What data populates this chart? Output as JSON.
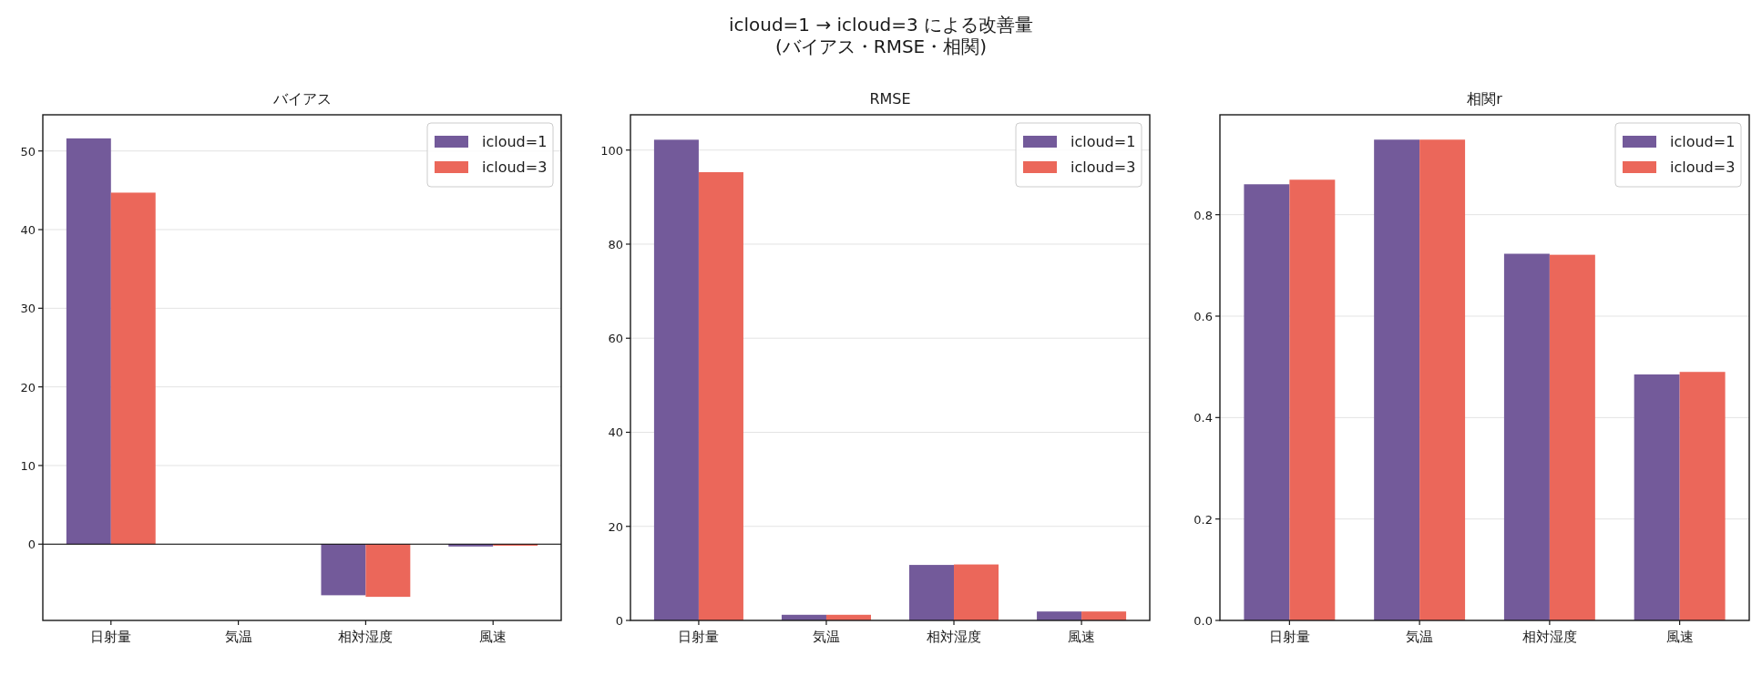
{
  "chart_data": [
    {
      "type": "bar",
      "title": "バイアス",
      "annotations": [
        "icloud=1 → icloud=3 による改善量\n(バイアス・RMSE・相関)"
      ],
      "categories": [
        "日射量",
        "気温",
        "相対湿度",
        "風速"
      ],
      "series": [
        {
          "name": "icloud=1",
          "color": "#735a9a",
          "values": [
            51.6,
            0,
            -6.5,
            -0.3
          ]
        },
        {
          "name": "icloud=3",
          "color": "#eb675a",
          "values": [
            44.7,
            0,
            -6.7,
            -0.2
          ]
        }
      ],
      "ylim": [
        -9.7,
        54.6
      ],
      "yticks": [
        0,
        10,
        20,
        30,
        40,
        50
      ],
      "grid": "y",
      "legend": "top right",
      "ref_lines": [
        {
          "axis": "y",
          "value": 0,
          "color": "#000000"
        }
      ]
    },
    {
      "type": "bar",
      "title": "RMSE",
      "categories": [
        "日射量",
        "気温",
        "相対湿度",
        "風速"
      ],
      "series": [
        {
          "name": "icloud=1",
          "color": "#735a9a",
          "values": [
            102.2,
            1.2,
            11.8,
            1.9
          ]
        },
        {
          "name": "icloud=3",
          "color": "#eb675a",
          "values": [
            95.3,
            1.2,
            11.9,
            1.9
          ]
        }
      ],
      "ylim": [
        0,
        107.5
      ],
      "yticks": [
        0,
        20,
        40,
        60,
        80,
        100
      ],
      "grid": "y",
      "legend": "top right"
    },
    {
      "type": "bar",
      "title": "相関r",
      "categories": [
        "日射量",
        "気温",
        "相対湿度",
        "風速"
      ],
      "series": [
        {
          "name": "icloud=1",
          "color": "#735a9a",
          "values": [
            0.86,
            0.948,
            0.723,
            0.485
          ]
        },
        {
          "name": "icloud=3",
          "color": "#eb675a",
          "values": [
            0.869,
            0.948,
            0.721,
            0.49
          ]
        }
      ],
      "ylim": [
        0,
        0.997
      ],
      "yticks": [
        {
          "value": 0,
          "label": "0.0"
        },
        {
          "value": 0.2,
          "label": "0.2"
        },
        {
          "value": 0.4,
          "label": "0.4"
        },
        {
          "value": 0.6,
          "label": "0.6"
        },
        {
          "value": 0.8,
          "label": "0.8"
        }
      ],
      "grid": "y",
      "legend": "top right"
    }
  ]
}
